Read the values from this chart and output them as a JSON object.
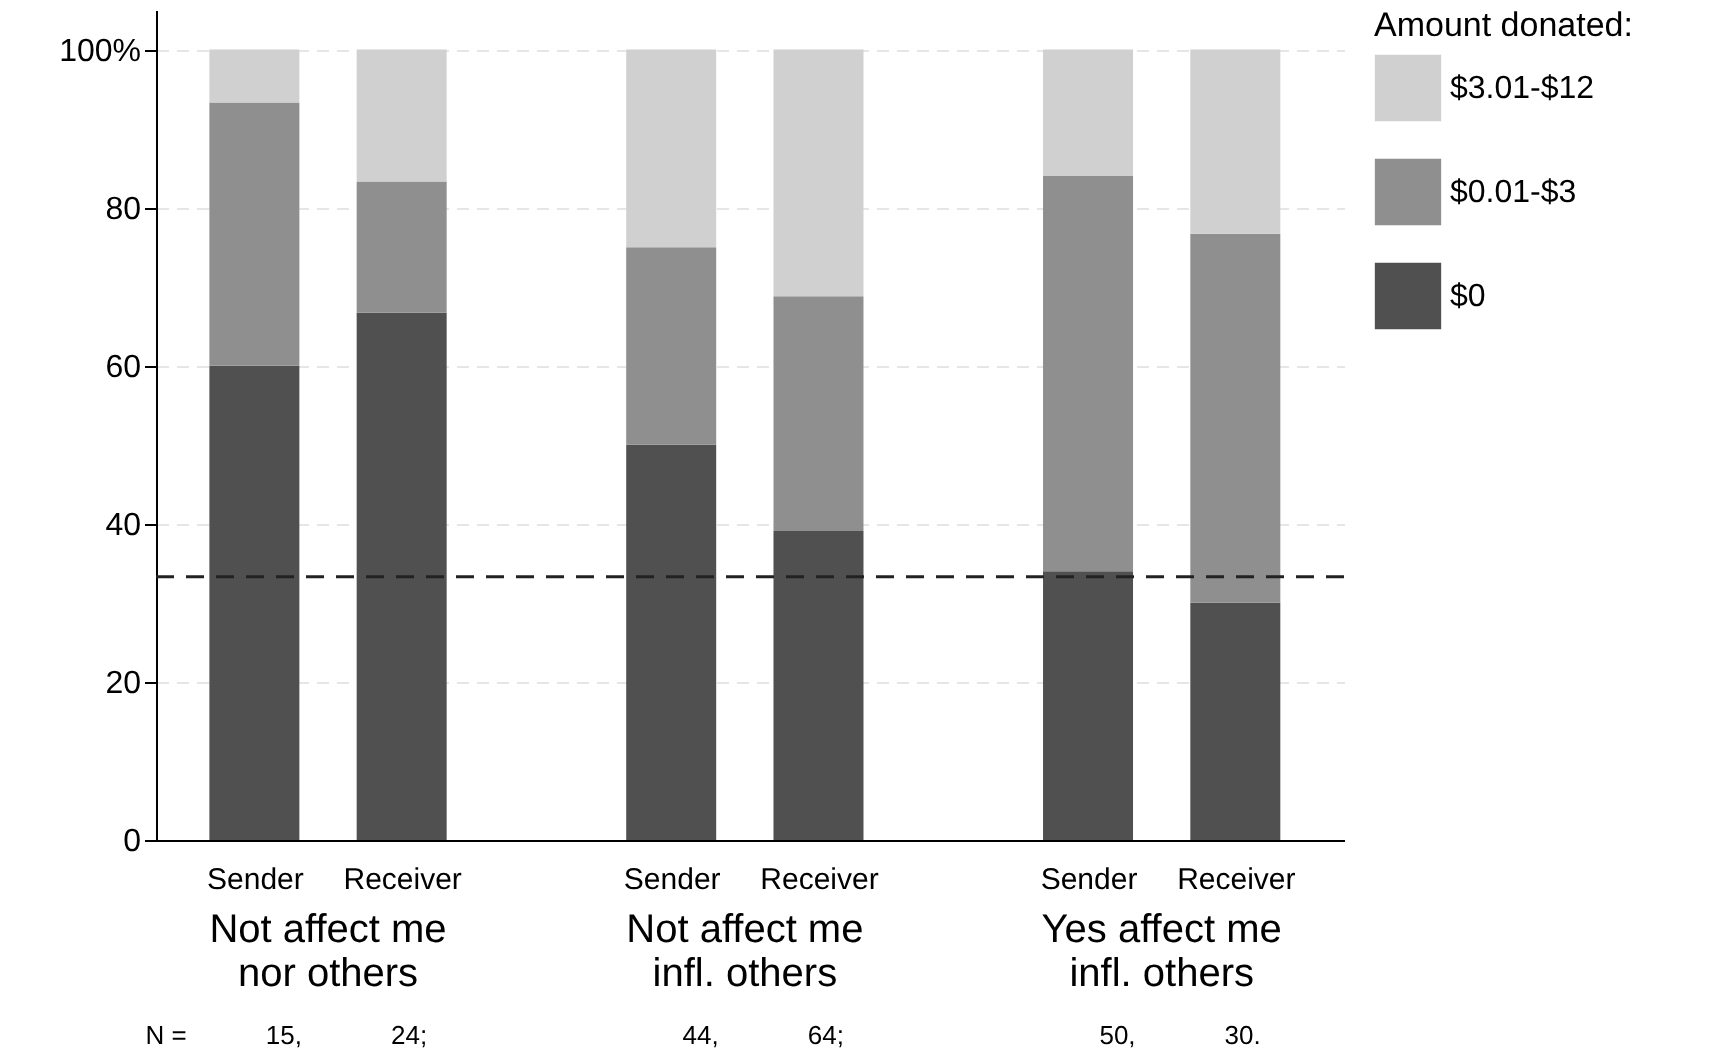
{
  "chart_data": {
    "type": "bar",
    "stacked": true,
    "categories": [
      "Sender",
      "Receiver",
      "Sender",
      "Receiver",
      "Sender",
      "Receiver"
    ],
    "series": [
      {
        "name": "$0",
        "color": "#505050",
        "values": [
          60,
          66.7,
          50,
          39.1,
          34,
          30
        ]
      },
      {
        "name": "$0.01-$3",
        "color": "#8f8f8f",
        "values": [
          33.3,
          16.6,
          25,
          29.7,
          50,
          46.7
        ]
      },
      {
        "name": "$3.01-$12",
        "color": "#d0d0d0",
        "values": [
          6.7,
          16.7,
          25,
          31.2,
          16,
          23.3
        ]
      }
    ],
    "ylim": [
      0,
      105
    ],
    "yticks": [
      0,
      20,
      40,
      60,
      {
        "value": 100,
        "label": "100%"
      },
      80
    ],
    "grid": "y",
    "legend": "right",
    "legend_title": "Amount donated:",
    "ref_lines": [
      {
        "axis": "y",
        "value": 33.3,
        "color": "#222222",
        "line_style": "dashed"
      }
    ],
    "annotations": [
      "Not affect me\nnor others",
      "Not affect me\ninfl. others",
      "Yes affect me\ninfl. others",
      "N =",
      "15,",
      "24;",
      "44,",
      "64;",
      "50,",
      "30."
    ]
  }
}
